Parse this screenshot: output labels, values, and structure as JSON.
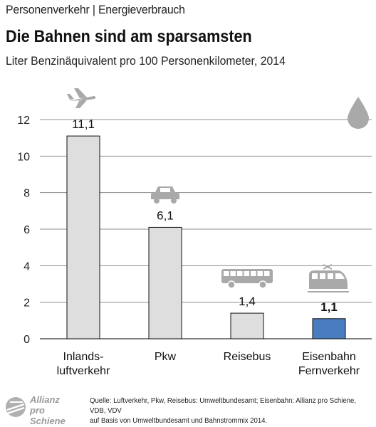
{
  "header": {
    "topic": "Personenverkehr | Energieverbrauch",
    "title": "Die Bahnen sind am sparsamsten",
    "subtitle": "Liter Benzinäquivalent pro 100 Personenkilometer, 2014"
  },
  "chart_data": {
    "type": "bar",
    "title": "Die Bahnen sind am sparsamsten",
    "subtitle": "Liter Benzinäquivalent pro 100 Personenkilometer, 2014",
    "categories": [
      "Inlands-\nluftverkehr",
      "Pkw",
      "Reisebus",
      "Eisenbahn\nFernverkehr"
    ],
    "values": [
      11.1,
      6.1,
      1.4,
      1.1
    ],
    "value_labels": [
      "11,1",
      "6,1",
      "1,4",
      "1,1"
    ],
    "highlight_index": 3,
    "icons": [
      "airplane-icon",
      "car-icon",
      "bus-icon",
      "train-icon"
    ],
    "ylim": [
      0,
      12
    ],
    "yticks": [
      0,
      2,
      4,
      6,
      8,
      10,
      12
    ],
    "grid": true,
    "colors": {
      "bar": "#dedede",
      "bar_highlight": "#4a7cc0",
      "bar_outline": "#111111",
      "grid": "#8c8c8c",
      "icon": "#a9a9a9"
    }
  },
  "footer": {
    "logo_line1": "Allianz",
    "logo_line2": "pro Schiene",
    "source_line1": "Quelle: Luftverkehr, Pkw, Reisebus: Umweltbundesamt; Eisenbahn: Allianz pro Schiene, VDB, VDV",
    "source_line2": "auf Basis von Umweltbundesamt und Bahnstrommix 2014."
  }
}
